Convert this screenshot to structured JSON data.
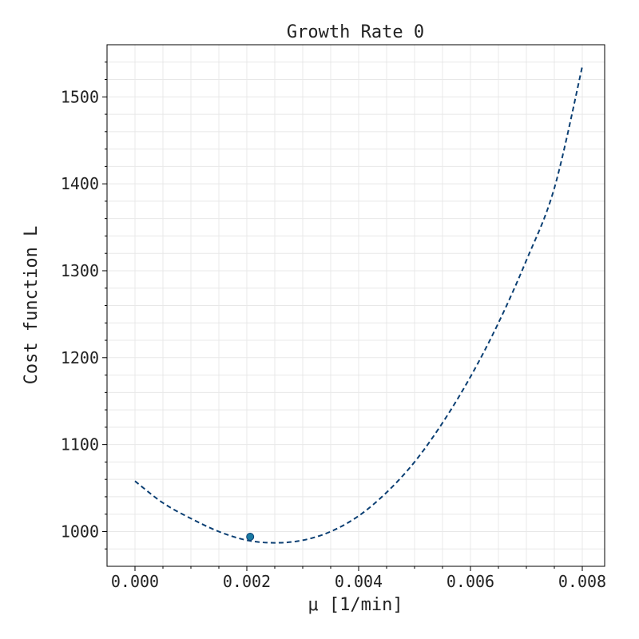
{
  "chart_data": {
    "type": "line",
    "title": "Growth Rate 0",
    "xlabel": "μ [1/min]",
    "ylabel": "Cost function L",
    "xlim": [
      -0.0005,
      0.0084
    ],
    "ylim": [
      960,
      1560
    ],
    "x_ticks": [
      0.0,
      0.002,
      0.004,
      0.006,
      0.008
    ],
    "x_tick_labels": [
      "0.000",
      "0.002",
      "0.004",
      "0.006",
      "0.008"
    ],
    "x_minor_ticks": [
      0.0005,
      0.001,
      0.0015,
      0.0025,
      0.003,
      0.0035,
      0.0045,
      0.005,
      0.0055,
      0.0065,
      0.007,
      0.0075
    ],
    "y_ticks": [
      1000,
      1100,
      1200,
      1300,
      1400,
      1500
    ],
    "y_tick_labels": [
      "1000",
      "1100",
      "1200",
      "1300",
      "1400",
      "1500"
    ],
    "y_minor_ticks": [
      980,
      1020,
      1040,
      1060,
      1080,
      1120,
      1140,
      1160,
      1180,
      1220,
      1240,
      1260,
      1280,
      1320,
      1340,
      1360,
      1380,
      1420,
      1440,
      1460,
      1480,
      1520,
      1540
    ],
    "grid": true,
    "series": [
      {
        "style": "dashed",
        "color": "#0b3f73",
        "x": [
          0.0,
          0.0005,
          0.001,
          0.0015,
          0.002,
          0.0025,
          0.003,
          0.0035,
          0.004,
          0.0045,
          0.005,
          0.0055,
          0.006,
          0.0065,
          0.007,
          0.0075,
          0.008
        ],
        "y": [
          1058,
          1033,
          1015,
          1000,
          990,
          987,
          990,
          1000,
          1018,
          1045,
          1080,
          1125,
          1178,
          1240,
          1312,
          1395,
          1535
        ]
      }
    ],
    "points": [
      {
        "x": 0.00206,
        "y": 994,
        "color": "#1a7aa3",
        "edge": "#0b3f73"
      }
    ]
  }
}
